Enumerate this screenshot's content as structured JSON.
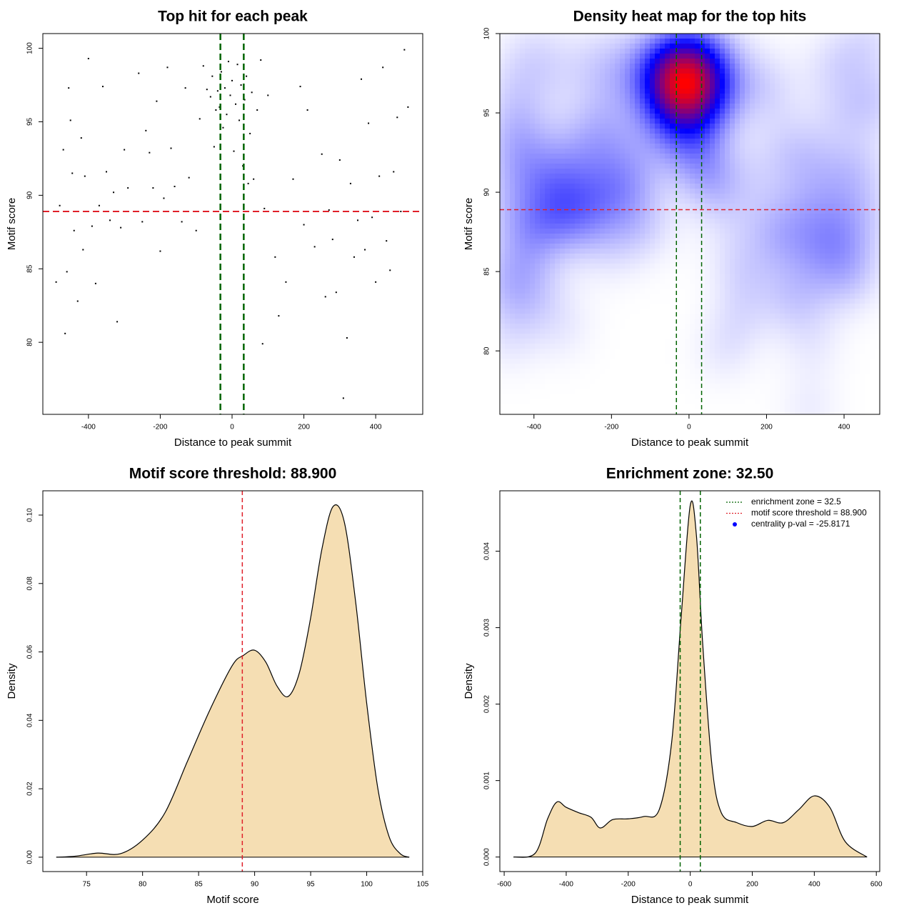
{
  "chart_data": [
    {
      "type": "scatter",
      "title": "Top hit for each peak",
      "x_label": "Distance to peak summit",
      "y_label": "Motif score",
      "x": [
        -490,
        -480,
        -470,
        -465,
        -460,
        -455,
        -450,
        -445,
        -440,
        -430,
        -420,
        -415,
        -410,
        -400,
        -390,
        -380,
        -370,
        -360,
        -350,
        -340,
        -330,
        -320,
        -310,
        -300,
        -290,
        -270,
        -260,
        -250,
        -240,
        -230,
        -220,
        -210,
        -200,
        -190,
        -180,
        -170,
        -160,
        -140,
        -130,
        -120,
        -100,
        -90,
        -80,
        -70,
        -60,
        -55,
        -50,
        -45,
        -40,
        -35,
        -30,
        -25,
        -20,
        -15,
        -10,
        -5,
        0,
        5,
        10,
        15,
        20,
        25,
        30,
        35,
        40,
        45,
        50,
        55,
        60,
        70,
        80,
        85,
        90,
        100,
        120,
        130,
        150,
        170,
        190,
        200,
        210,
        230,
        250,
        260,
        270,
        280,
        290,
        300,
        310,
        320,
        330,
        340,
        350,
        360,
        370,
        380,
        390,
        400,
        410,
        420,
        430,
        440,
        450,
        460,
        470,
        480,
        490
      ],
      "values": [
        84.1,
        89.3,
        93.1,
        80.6,
        84.8,
        97.3,
        95.1,
        91.5,
        87.6,
        82.8,
        93.9,
        86.3,
        91.3,
        99.3,
        87.9,
        84.0,
        89.3,
        97.4,
        91.6,
        88.3,
        90.2,
        81.4,
        87.8,
        93.1,
        90.5,
        88.9,
        98.3,
        88.2,
        94.4,
        92.9,
        90.5,
        96.4,
        86.2,
        89.8,
        98.7,
        93.2,
        90.6,
        88.2,
        97.3,
        91.2,
        87.6,
        95.2,
        98.8,
        97.2,
        96.7,
        98.1,
        93.3,
        95.8,
        97.1,
        96.0,
        98.4,
        94.6,
        97.3,
        95.5,
        99.1,
        96.8,
        97.8,
        93.0,
        96.2,
        98.9,
        95.1,
        97.5,
        92.0,
        96.5,
        98.1,
        90.8,
        94.2,
        97.0,
        91.1,
        95.8,
        99.2,
        79.9,
        89.1,
        96.8,
        85.8,
        81.8,
        84.1,
        91.1,
        97.4,
        88.0,
        95.8,
        86.5,
        92.8,
        83.1,
        89.0,
        87.0,
        83.4,
        92.4,
        76.2,
        80.3,
        90.8,
        85.8,
        88.3,
        97.9,
        86.3,
        94.9,
        88.5,
        84.1,
        91.3,
        98.7,
        86.9,
        84.9,
        91.6,
        95.3,
        88.9,
        99.9,
        96.0
      ],
      "color": "#000000",
      "xlim": [
        -527,
        531
      ],
      "ylim": [
        75.1,
        101
      ],
      "xticks": [
        -400,
        -200,
        0,
        200,
        400
      ],
      "yticks": [
        80,
        85,
        90,
        95,
        100
      ],
      "vlines": [
        -32.5,
        32.5
      ],
      "vline_color": "#006400",
      "hline": 88.9,
      "hline_color": "#e0202a"
    },
    {
      "type": "heatmap",
      "title": "Density heat map for the top hits",
      "x_label": "Distance to peak summit",
      "y_label": "Motif score",
      "xlim": [
        -488,
        492
      ],
      "ylim": [
        76,
        100
      ],
      "xticks": [
        -400,
        -200,
        0,
        200,
        400
      ],
      "yticks": [
        80,
        85,
        90,
        95,
        100
      ],
      "vlines": [
        -32.5,
        32.5
      ],
      "vline_color": "#006400",
      "hline": 88.9,
      "hline_color": "#e0202a"
    },
    {
      "type": "density",
      "title": "Motif score threshold: 88.900",
      "x_label": "Motif score",
      "y_label": "Density",
      "x": [
        72.3,
        74,
        76,
        78,
        80,
        82,
        84,
        86,
        88,
        89,
        90,
        91,
        92,
        93,
        94,
        95,
        96,
        97,
        98,
        99,
        100,
        101,
        102,
        103,
        103.8
      ],
      "values": [
        0,
        0.0003,
        0.0012,
        0.001,
        0.005,
        0.013,
        0.028,
        0.043,
        0.056,
        0.059,
        0.0605,
        0.057,
        0.05,
        0.047,
        0.054,
        0.07,
        0.09,
        0.1025,
        0.098,
        0.075,
        0.045,
        0.02,
        0.006,
        0.001,
        0
      ],
      "color": "#f5deb3",
      "xlim": [
        71.1,
        105
      ],
      "ylim": [
        -0.0042,
        0.1071
      ],
      "xticks": [
        75,
        80,
        85,
        90,
        95,
        100,
        105
      ],
      "yticks": [
        {
          "value": 0,
          "label": "0.00"
        },
        {
          "value": 0.02,
          "label": "0.02"
        },
        {
          "value": 0.04,
          "label": "0.04"
        },
        {
          "value": 0.06,
          "label": "0.06"
        },
        {
          "value": 0.08,
          "label": "0.08"
        },
        {
          "value": 0.1,
          "label": "0.10"
        }
      ],
      "vlines": [
        88.9
      ],
      "vline_color": "#e0202a"
    },
    {
      "type": "density",
      "title": "Enrichment zone: 32.50",
      "x_label": "Distance to peak summit",
      "y_label": "Density",
      "x": [
        -570,
        -500,
        -460,
        -430,
        -400,
        -360,
        -320,
        -290,
        -250,
        -200,
        -150,
        -100,
        -60,
        -30,
        0,
        20,
        40,
        70,
        100,
        150,
        200,
        250,
        300,
        350,
        400,
        450,
        500,
        570
      ],
      "values": [
        0,
        5e-05,
        0.0005,
        0.00072,
        0.00065,
        0.00058,
        0.00052,
        0.00038,
        0.00049,
        0.0005,
        0.00053,
        0.00062,
        0.0015,
        0.0031,
        0.0046,
        0.0042,
        0.0028,
        0.0012,
        0.00058,
        0.00045,
        0.0004,
        0.00048,
        0.00045,
        0.00062,
        0.0008,
        0.00065,
        0.0002,
        0
      ],
      "color": "#f5deb3",
      "xlim": [
        -614,
        611
      ],
      "ylim": [
        -0.00019,
        0.00479
      ],
      "xticks": [
        -600,
        -400,
        -200,
        0,
        200,
        400,
        600
      ],
      "yticks": [
        {
          "value": 0,
          "label": "0.000"
        },
        {
          "value": 0.001,
          "label": "0.001"
        },
        {
          "value": 0.002,
          "label": "0.002"
        },
        {
          "value": 0.003,
          "label": "0.003"
        },
        {
          "value": 0.004,
          "label": "0.004"
        }
      ],
      "vlines": [
        -32.5,
        32.5
      ],
      "vline_color": "#006400",
      "legend": [
        {
          "label": "enrichment zone = 32.5",
          "color": "#006400",
          "style": "dotted"
        },
        {
          "label": "motif score threshold = 88.900",
          "color": "#e0202a",
          "style": "dotted"
        },
        {
          "label": "centrality p-val = -25.8171",
          "color": "#0000ff",
          "style": "point"
        }
      ]
    }
  ]
}
